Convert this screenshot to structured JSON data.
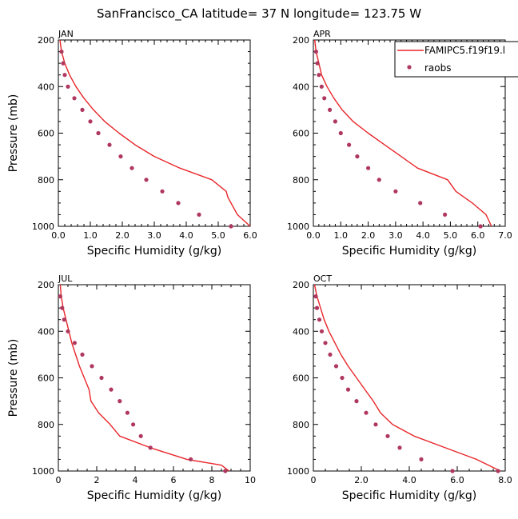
{
  "title": "SanFrancisco_CA  latitude= 37 N longitude= 123.75 W",
  "colors": {
    "model": "#e8262a",
    "obs": "#b0385e",
    "axis": "#000000"
  },
  "legend": {
    "model_label": "FAMIPC5.f19f19.l",
    "obs_label": "raobs"
  },
  "chart_data": [
    {
      "type": "line",
      "panel": "JAN",
      "xlabel": "Specific Humidity (g/kg)",
      "ylabel": "Pressure (mb)",
      "xlim": [
        0,
        6
      ],
      "ylim": [
        1000,
        200
      ],
      "y_reversed": true,
      "xticks": [
        0,
        1,
        2,
        3,
        4,
        5,
        6
      ],
      "xticklabels": [
        "0.0",
        "1.0",
        "2.0",
        "3.0",
        "4.0",
        "5.0",
        "6.0"
      ],
      "yticks": [
        200,
        400,
        600,
        800,
        1000
      ],
      "series": [
        {
          "name": "FAMIPC5.f19f19.l",
          "kind": "line",
          "x": [
            0.05,
            0.1,
            0.2,
            0.35,
            0.55,
            0.8,
            1.1,
            1.45,
            1.9,
            2.4,
            3.0,
            3.8,
            4.8,
            5.25,
            5.3,
            5.6,
            6.0
          ],
          "y": [
            200,
            250,
            300,
            350,
            400,
            450,
            500,
            550,
            600,
            650,
            700,
            750,
            800,
            850,
            875,
            950,
            1000
          ]
        },
        {
          "name": "raobs",
          "kind": "points",
          "x": [
            0.1,
            0.15,
            0.2,
            0.3,
            0.5,
            0.75,
            1.0,
            1.25,
            1.6,
            1.95,
            2.3,
            2.75,
            3.25,
            3.75,
            4.4,
            5.4
          ],
          "y": [
            250,
            300,
            350,
            400,
            450,
            500,
            550,
            600,
            650,
            700,
            750,
            800,
            850,
            900,
            950,
            1000
          ]
        }
      ]
    },
    {
      "type": "line",
      "panel": "APR",
      "xlabel": "Specific Humidity (g/kg)",
      "ylabel": "",
      "xlim": [
        0,
        7
      ],
      "ylim": [
        1000,
        200
      ],
      "y_reversed": true,
      "xticks": [
        0,
        1,
        2,
        3,
        4,
        5,
        6,
        7
      ],
      "xticklabels": [
        "0.0",
        "1.0",
        "2.0",
        "3.0",
        "4.0",
        "5.0",
        "6.0",
        "7.0"
      ],
      "yticks": [
        200,
        400,
        600,
        800,
        1000
      ],
      "series": [
        {
          "name": "FAMIPC5.f19f19.l",
          "kind": "line",
          "x": [
            0.05,
            0.1,
            0.2,
            0.3,
            0.5,
            0.75,
            1.05,
            1.45,
            2.0,
            2.6,
            3.2,
            3.8,
            4.9,
            5.2,
            5.8,
            6.3,
            6.5
          ],
          "y": [
            200,
            250,
            300,
            350,
            400,
            450,
            500,
            550,
            600,
            650,
            700,
            750,
            800,
            850,
            900,
            950,
            1000
          ]
        },
        {
          "name": "raobs",
          "kind": "points",
          "x": [
            0.1,
            0.15,
            0.2,
            0.3,
            0.4,
            0.6,
            0.8,
            1.0,
            1.3,
            1.6,
            2.0,
            2.4,
            3.0,
            3.9,
            4.8,
            6.1
          ],
          "y": [
            250,
            300,
            350,
            400,
            450,
            500,
            550,
            600,
            650,
            700,
            750,
            800,
            850,
            900,
            950,
            1000
          ]
        }
      ]
    },
    {
      "type": "line",
      "panel": "JUL",
      "xlabel": "Specific Humidity (g/kg)",
      "ylabel": "Pressure (mb)",
      "xlim": [
        0,
        10
      ],
      "ylim": [
        1000,
        200
      ],
      "y_reversed": true,
      "xticks": [
        0,
        2,
        4,
        6,
        8,
        10
      ],
      "xticklabels": [
        "0",
        "2",
        "4",
        "6",
        "8",
        "10"
      ],
      "yticks": [
        200,
        400,
        600,
        800,
        1000
      ],
      "series": [
        {
          "name": "FAMIPC5.f19f19.l",
          "kind": "line",
          "x": [
            0.1,
            0.15,
            0.25,
            0.4,
            0.55,
            0.7,
            0.9,
            1.1,
            1.35,
            1.6,
            1.7,
            2.1,
            2.7,
            3.2,
            4.8,
            6.7,
            8.5,
            8.9
          ],
          "y": [
            200,
            250,
            300,
            350,
            400,
            450,
            500,
            550,
            600,
            650,
            700,
            750,
            800,
            850,
            900,
            950,
            975,
            1000
          ]
        },
        {
          "name": "raobs",
          "kind": "points",
          "x": [
            0.1,
            0.2,
            0.3,
            0.5,
            0.85,
            1.25,
            1.75,
            2.25,
            2.75,
            3.2,
            3.6,
            3.9,
            4.3,
            4.8,
            6.9,
            8.7
          ],
          "y": [
            250,
            300,
            350,
            400,
            450,
            500,
            550,
            600,
            650,
            700,
            750,
            800,
            850,
            900,
            950,
            1000
          ]
        }
      ]
    },
    {
      "type": "line",
      "panel": "OCT",
      "xlabel": "Specific Humidity (g/kg)",
      "ylabel": "",
      "xlim": [
        0,
        8
      ],
      "ylim": [
        1000,
        200
      ],
      "y_reversed": true,
      "xticks": [
        0,
        2,
        4,
        6,
        8
      ],
      "xticklabels": [
        "0",
        "2.0",
        "4.0",
        "6.0",
        "8.0"
      ],
      "yticks": [
        200,
        400,
        600,
        800,
        1000
      ],
      "series": [
        {
          "name": "FAMIPC5.f19f19.l",
          "kind": "line",
          "x": [
            0.05,
            0.15,
            0.3,
            0.45,
            0.65,
            0.9,
            1.15,
            1.45,
            1.8,
            2.15,
            2.5,
            2.8,
            3.3,
            4.2,
            5.5,
            6.8,
            7.8
          ],
          "y": [
            200,
            250,
            300,
            350,
            400,
            450,
            500,
            550,
            600,
            650,
            700,
            750,
            800,
            850,
            900,
            950,
            1000
          ]
        },
        {
          "name": "raobs",
          "kind": "points",
          "x": [
            0.1,
            0.15,
            0.25,
            0.35,
            0.5,
            0.7,
            0.95,
            1.2,
            1.45,
            1.8,
            2.2,
            2.6,
            3.1,
            3.6,
            4.5,
            5.8,
            7.7
          ],
          "y": [
            250,
            300,
            350,
            400,
            450,
            500,
            550,
            600,
            650,
            700,
            750,
            800,
            850,
            900,
            950,
            1000,
            1000
          ]
        }
      ]
    }
  ]
}
